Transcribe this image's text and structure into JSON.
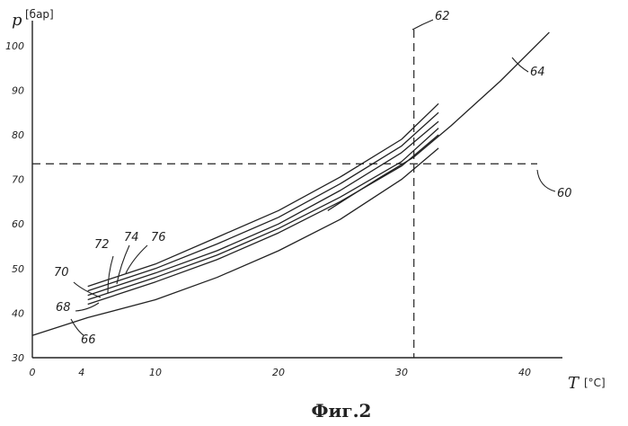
{
  "caption": "Фиг.2",
  "chart_data": {
    "type": "line",
    "title": "",
    "ylabel": "p",
    "yunit": "[бар]",
    "xlabel": "T",
    "xunit": "[°C]",
    "xlim": [
      0,
      46
    ],
    "ylim": [
      30,
      106
    ],
    "x_ticks": [
      "0",
      "4",
      "10",
      "20",
      "30",
      "40"
    ],
    "x_tick_values": [
      0,
      4,
      10,
      20,
      30,
      40
    ],
    "y_ticks": [
      "30",
      "40",
      "50",
      "60",
      "70",
      "80",
      "90",
      "100"
    ],
    "y_tick_values": [
      30,
      40,
      50,
      60,
      70,
      80,
      90,
      100
    ],
    "grid": false,
    "reference_lines": [
      {
        "name": "60",
        "orientation": "horizontal",
        "value": 73.5,
        "style": "dashed"
      },
      {
        "name": "62",
        "orientation": "vertical",
        "value": 31,
        "style": "dashed"
      }
    ],
    "series": [
      {
        "name": "64",
        "x": [
          24,
          28,
          31,
          34,
          38,
          42
        ],
        "y": [
          63,
          70,
          75,
          82,
          92,
          103
        ]
      },
      {
        "name": "66",
        "x": [
          0,
          4.5,
          10,
          15,
          20,
          25,
          30,
          33
        ],
        "y": [
          35,
          39,
          43,
          48,
          54,
          61,
          70,
          77
        ]
      },
      {
        "name": "68",
        "x": [
          4.5,
          10,
          15,
          20,
          25,
          30,
          33
        ],
        "y": [
          42,
          47,
          52,
          58,
          65,
          73,
          80
        ]
      },
      {
        "name": "70",
        "x": [
          4.5,
          10,
          15,
          20,
          25,
          30,
          33
        ],
        "y": [
          43,
          48,
          53,
          59,
          66,
          74,
          81.5
        ]
      },
      {
        "name": "72",
        "x": [
          4.5,
          10,
          15,
          20,
          25,
          30,
          33
        ],
        "y": [
          44,
          49,
          54,
          60,
          67.5,
          76,
          83
        ]
      },
      {
        "name": "74",
        "x": [
          4.5,
          10,
          15,
          20,
          25,
          30,
          33
        ],
        "y": [
          45,
          50,
          55.5,
          61.5,
          69,
          77.5,
          85
        ]
      },
      {
        "name": "76",
        "x": [
          4.5,
          10,
          15,
          20,
          25,
          30,
          33
        ],
        "y": [
          46,
          51,
          57,
          63,
          70.5,
          79,
          87
        ]
      }
    ]
  }
}
